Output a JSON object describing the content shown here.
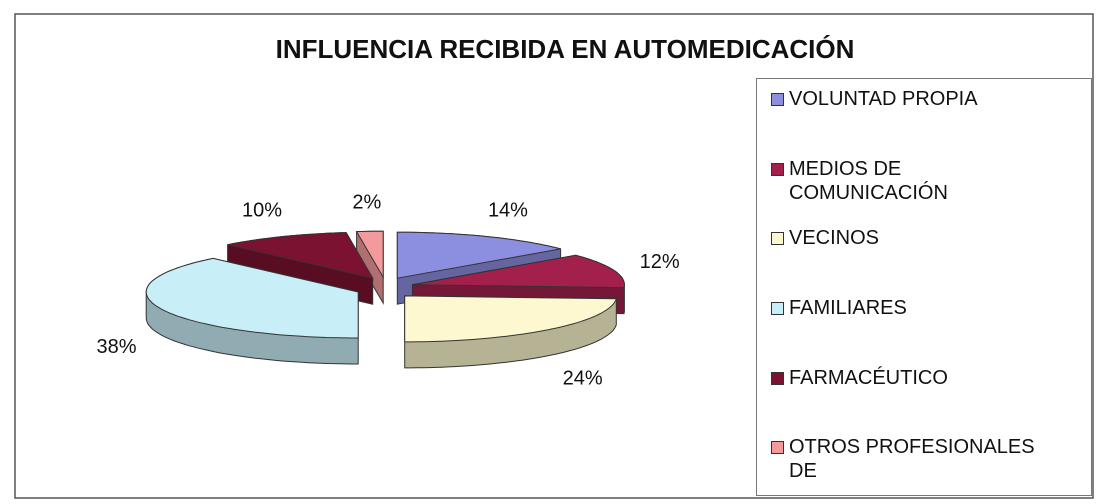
{
  "chart_data": {
    "type": "pie",
    "title": "INFLUENCIA RECIBIDA EN AUTOMEDICACIÓN",
    "categories": [
      "VOLUNTAD PROPIA",
      "MEDIOS DE COMUNICACIÓN",
      "VECINOS",
      "FAMILIARES",
      "FARMACÉUTICO",
      "OTROS PROFESIONALES DE"
    ],
    "values": [
      14,
      12,
      24,
      38,
      10,
      2
    ],
    "value_labels": [
      "14%",
      "12%",
      "24%",
      "38%",
      "10%",
      "2%"
    ],
    "colors": [
      "#8c8ee0",
      "#a3204c",
      "#fdf8cf",
      "#c8eff7",
      "#7b1231",
      "#f59a9c"
    ],
    "legend": "right",
    "three_d": true,
    "exploded": true
  }
}
